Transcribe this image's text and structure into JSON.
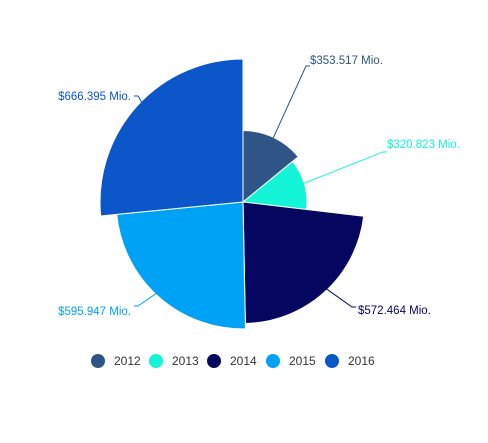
{
  "chart_data": {
    "type": "pie",
    "subtype": "variable-radius pie",
    "categories": [
      "2012",
      "2013",
      "2014",
      "2015",
      "2016"
    ],
    "values": [
      353.517,
      320.823,
      572.464,
      595.947,
      666.395
    ],
    "data_labels": [
      "$353.517 Mio.",
      "$320.823 Mio.",
      "$572.464 Mio.",
      "$595.947 Mio.",
      "$666.395 Mio."
    ],
    "colors": [
      "#2F5486",
      "#14F4D6",
      "#05065F",
      "#00A2F5",
      "#0B57C9"
    ],
    "legend": {
      "position": "bottom"
    },
    "title": ""
  }
}
